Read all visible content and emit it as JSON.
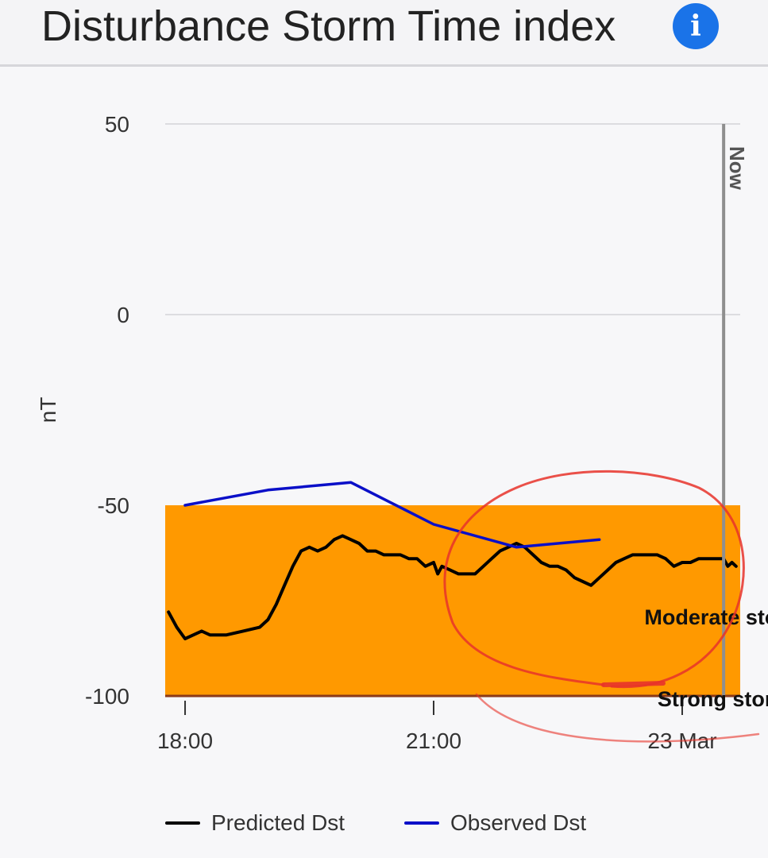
{
  "header": {
    "title": "Disturbance Storm Time index",
    "info_icon": "info-icon",
    "info_glyph": "i"
  },
  "chart_data": {
    "type": "line",
    "title": "Disturbance Storm Time index",
    "ylabel": "nT",
    "xlabel": "",
    "ylim": [
      -100,
      50
    ],
    "yticks": [
      {
        "value": 50,
        "label": "50"
      },
      {
        "value": 0,
        "label": "0"
      },
      {
        "value": -50,
        "label": "-50"
      },
      {
        "value": -100,
        "label": "-100"
      }
    ],
    "xlim": [
      17.76,
      24.7
    ],
    "xticks": [
      {
        "value": 18,
        "label": "18:00"
      },
      {
        "value": 21,
        "label": "21:00"
      },
      {
        "value": 24,
        "label": "23 Mar"
      }
    ],
    "now_marker": {
      "x": 24.5,
      "label": "Now"
    },
    "bands": [
      {
        "name": "Moderate storm",
        "from": -100,
        "to": -50,
        "color": "#ff9900"
      },
      {
        "name": "Strong storm",
        "from": -100,
        "to": -100,
        "color": "#8b3a1a"
      }
    ],
    "series": [
      {
        "name": "Predicted Dst",
        "color": "#000000",
        "x": [
          17.8,
          17.9,
          18.0,
          18.1,
          18.2,
          18.3,
          18.5,
          18.7,
          18.9,
          19.0,
          19.1,
          19.2,
          19.3,
          19.4,
          19.5,
          19.6,
          19.7,
          19.8,
          19.9,
          20.0,
          20.1,
          20.2,
          20.3,
          20.4,
          20.5,
          20.6,
          20.7,
          20.8,
          20.9,
          21.0,
          21.05,
          21.1,
          21.2,
          21.3,
          21.4,
          21.5,
          21.6,
          21.7,
          21.8,
          21.9,
          22.0,
          22.1,
          22.2,
          22.3,
          22.4,
          22.5,
          22.6,
          22.7,
          22.8,
          22.9,
          23.0,
          23.1,
          23.2,
          23.3,
          23.4,
          23.5,
          23.6,
          23.7,
          23.8,
          23.9,
          24.0,
          24.1,
          24.2,
          24.3,
          24.4,
          24.5,
          24.55,
          24.6,
          24.65
        ],
        "values": [
          -78,
          -82,
          -85,
          -84,
          -83,
          -84,
          -84,
          -83,
          -82,
          -80,
          -76,
          -71,
          -66,
          -62,
          -61,
          -62,
          -61,
          -59,
          -58,
          -59,
          -60,
          -62,
          -62,
          -63,
          -63,
          -63,
          -64,
          -64,
          -66,
          -65,
          -68,
          -66,
          -67,
          -68,
          -68,
          -68,
          -66,
          -64,
          -62,
          -61,
          -60,
          -61,
          -63,
          -65,
          -66,
          -66,
          -67,
          -69,
          -70,
          -71,
          -69,
          -67,
          -65,
          -64,
          -63,
          -63,
          -63,
          -63,
          -64,
          -66,
          -65,
          -65,
          -64,
          -64,
          -64,
          -64,
          -66,
          -65,
          -66
        ]
      },
      {
        "name": "Observed Dst",
        "color": "#0a0fc8",
        "x": [
          18.0,
          19.0,
          20.0,
          21.0,
          22.0,
          23.0
        ],
        "values": [
          -50,
          -46,
          -44,
          -55,
          -61,
          -59
        ]
      }
    ],
    "annotations": [
      {
        "text": "Moderate storm",
        "x": 23.7,
        "y": -80
      },
      {
        "text": "Strong storm",
        "x": 23.7,
        "y": -101.5
      }
    ],
    "legend_position": "bottom",
    "grid": true
  },
  "colors": {
    "band_moderate": "#ff9900",
    "band_strong_line": "#8b3a1a",
    "now_line": "#8f8f8f",
    "annotation_circle": "#e8332a"
  }
}
